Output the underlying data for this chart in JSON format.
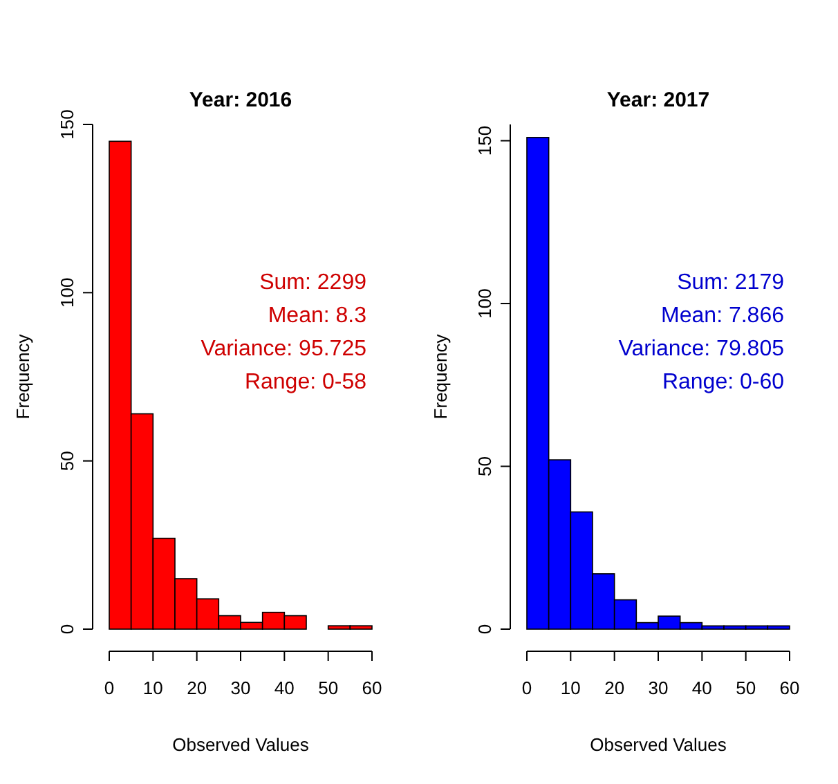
{
  "chart_data": [
    {
      "type": "histogram",
      "title": "Year: 2016",
      "xlabel": "Observed Values",
      "ylabel": "Frequency",
      "bins": [
        0,
        5,
        10,
        15,
        20,
        25,
        30,
        35,
        40,
        45,
        50,
        55,
        60
      ],
      "values": [
        145,
        64,
        27,
        15,
        9,
        4,
        2,
        5,
        4,
        0,
        1,
        1
      ],
      "color": "#ff0000",
      "xlim": [
        0,
        60
      ],
      "xticks": [
        0,
        10,
        20,
        30,
        40,
        50,
        60
      ],
      "ylim": [
        0,
        150
      ],
      "yticks": [
        0,
        50,
        100,
        150
      ],
      "grid": false,
      "annotations": [
        "Sum: 2299",
        "Mean: 8.3",
        "Variance: 95.725",
        "Range: 0-58"
      ]
    },
    {
      "type": "histogram",
      "title": "Year: 2017",
      "xlabel": "Observed Values",
      "ylabel": "Frequency",
      "bins": [
        0,
        5,
        10,
        15,
        20,
        25,
        30,
        35,
        40,
        45,
        50,
        55,
        60
      ],
      "values": [
        151,
        52,
        36,
        17,
        9,
        2,
        4,
        2,
        1,
        1,
        1,
        1
      ],
      "color": "#0000ff",
      "xlim": [
        0,
        60
      ],
      "xticks": [
        0,
        10,
        20,
        30,
        40,
        50,
        60
      ],
      "ylim": [
        0,
        155
      ],
      "yticks": [
        0,
        50,
        100,
        150
      ],
      "grid": false,
      "annotations": [
        "Sum: 2179",
        "Mean: 7.866",
        "Variance: 79.805",
        "Range: 0-60"
      ]
    }
  ]
}
